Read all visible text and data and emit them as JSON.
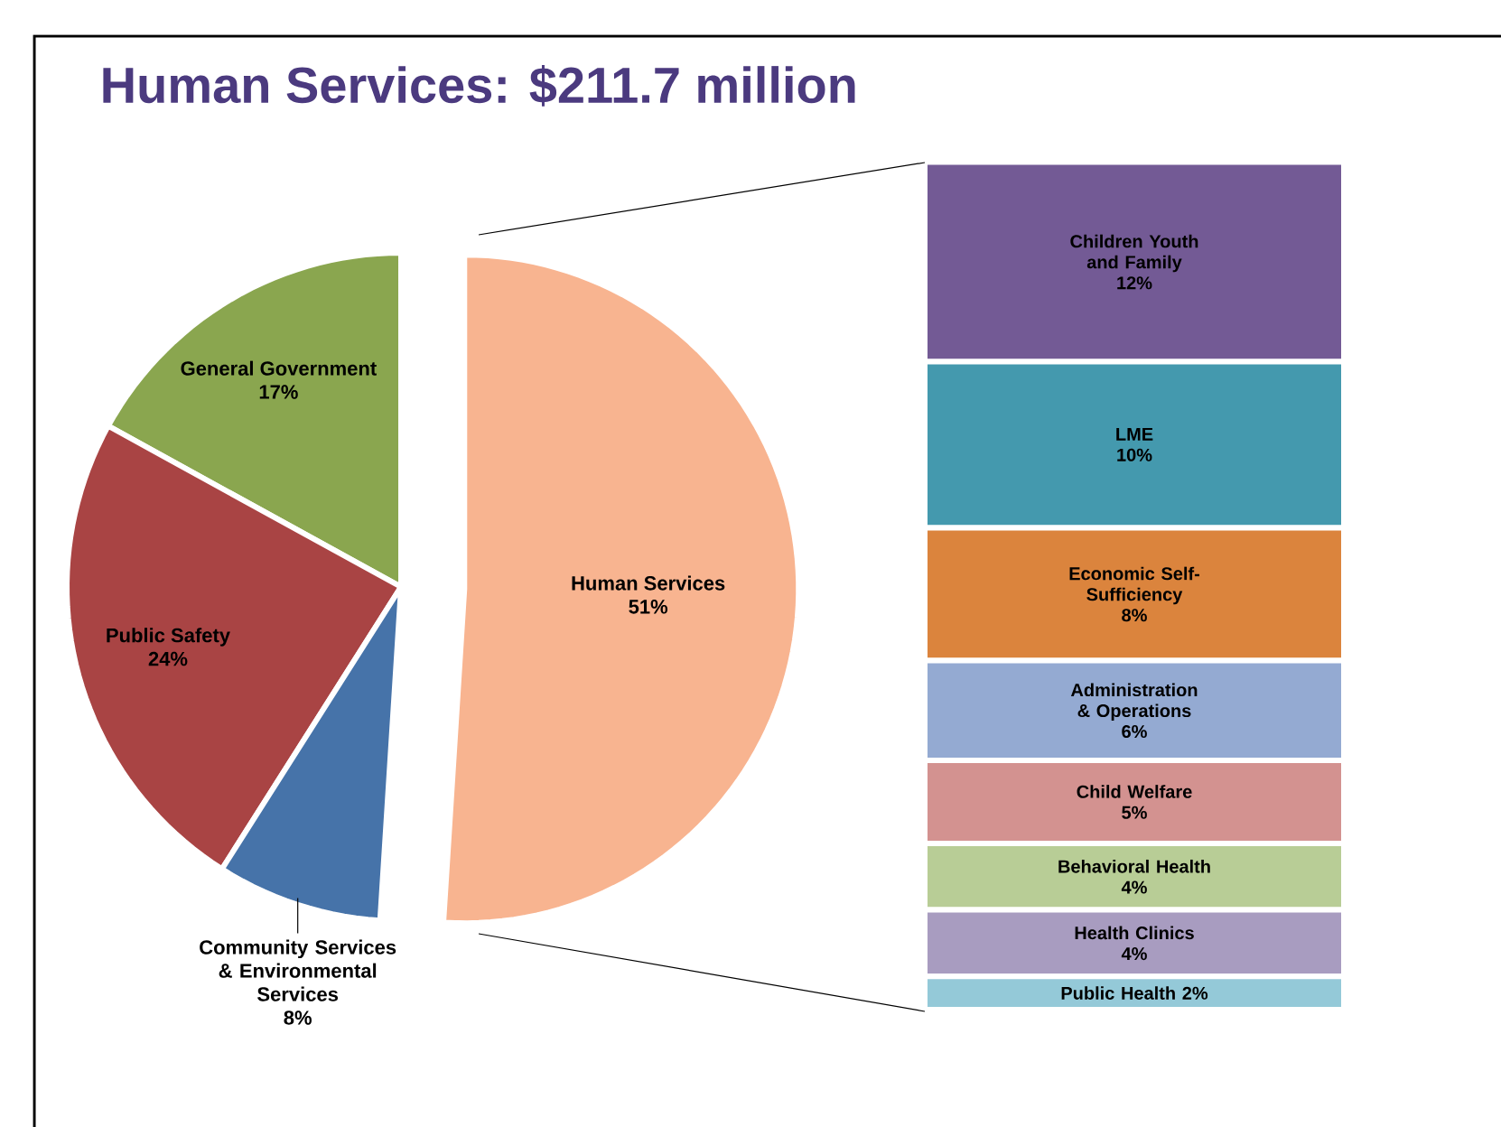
{
  "chart_data": [
    {
      "type": "pie",
      "title": "Human Services: $211.7 million",
      "categories": [
        "General Government",
        "Public Safety",
        "Community Services & Environmental Services",
        "Human Services"
      ],
      "values": [
        17,
        24,
        8,
        51
      ],
      "value_labels": [
        "17%",
        "24%",
        "8%",
        "51%"
      ],
      "colors": [
        "#8aa64f",
        "#a94444",
        "#4673a9",
        "#f8b490"
      ]
    },
    {
      "type": "bar",
      "stacked": true,
      "categories": [
        null
      ],
      "series": [
        {
          "name": "Public Health",
          "color": "#94c9d8",
          "values": [
            2
          ],
          "value_labels": [
            "2%"
          ]
        },
        {
          "name": "Health Clinics",
          "color": "#a89cc0",
          "values": [
            4
          ],
          "value_labels": [
            "4%"
          ]
        },
        {
          "name": "Behavioral Health",
          "color": "#b8cd96",
          "values": [
            4
          ],
          "value_labels": [
            "4%"
          ]
        },
        {
          "name": "Child Welfare",
          "color": "#d39290",
          "values": [
            5
          ],
          "value_labels": [
            "5%"
          ]
        },
        {
          "name": "Administration & Operations",
          "color": "#94aad2",
          "values": [
            6
          ],
          "value_labels": [
            "6%"
          ]
        },
        {
          "name": "Economic Self-Sufficiency",
          "color": "#db843d",
          "values": [
            8
          ],
          "value_labels": [
            "8%"
          ]
        },
        {
          "name": "LME",
          "color": "#4499ae",
          "values": [
            10
          ],
          "value_labels": [
            "10%"
          ]
        },
        {
          "name": "Children Youth and Family",
          "color": "#735a95",
          "values": [
            12
          ],
          "value_labels": [
            "12%"
          ]
        }
      ]
    }
  ]
}
